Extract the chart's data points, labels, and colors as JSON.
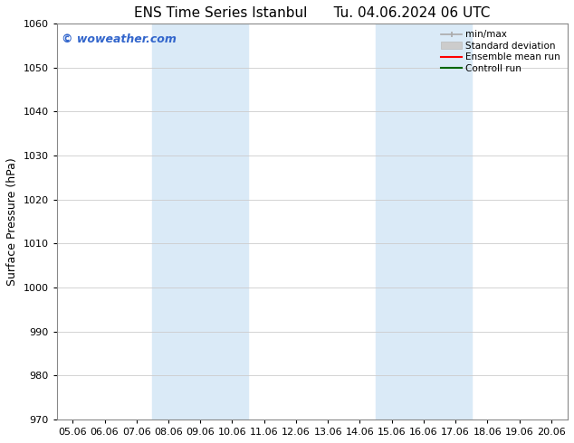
{
  "title_left": "ENS Time Series Istanbul",
  "title_right": "Tu. 04.06.2024 06 UTC",
  "ylabel": "Surface Pressure (hPa)",
  "ylim": [
    970,
    1060
  ],
  "yticks": [
    970,
    980,
    990,
    1000,
    1010,
    1020,
    1030,
    1040,
    1050,
    1060
  ],
  "xtick_labels": [
    "05.06",
    "06.06",
    "07.06",
    "08.06",
    "09.06",
    "10.06",
    "11.06",
    "12.06",
    "13.06",
    "14.06",
    "15.06",
    "16.06",
    "17.06",
    "18.06",
    "19.06",
    "20.06"
  ],
  "shaded_regions": [
    {
      "xstart": 3,
      "xend": 5,
      "color": "#daeaf7"
    },
    {
      "xstart": 10,
      "xend": 12,
      "color": "#daeaf7"
    }
  ],
  "watermark": "© woweather.com",
  "watermark_color": "#3366cc",
  "legend_entries": [
    {
      "label": "min/max"
    },
    {
      "label": "Standard deviation"
    },
    {
      "label": "Ensemble mean run"
    },
    {
      "label": "Controll run"
    }
  ],
  "bg_color": "#ffffff",
  "grid_color": "#cccccc",
  "font_color": "#000000",
  "title_fontsize": 11,
  "ylabel_fontsize": 9,
  "tick_fontsize": 8,
  "legend_fontsize": 7.5,
  "watermark_fontsize": 9
}
